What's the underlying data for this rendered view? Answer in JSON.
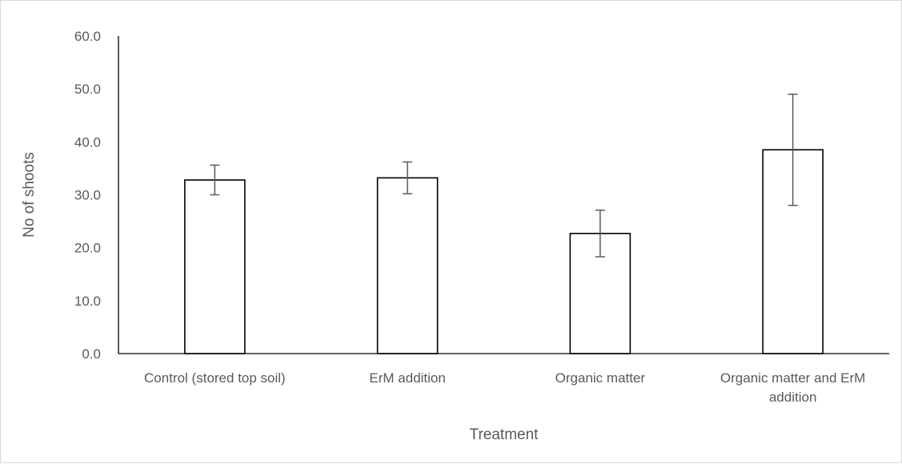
{
  "chart_data": {
    "type": "bar",
    "title": "",
    "xlabel": "Treatment",
    "ylabel": "No of shoots",
    "ylim": [
      0,
      60
    ],
    "yticks": [
      "0.0",
      "10.0",
      "20.0",
      "30.0",
      "40.0",
      "50.0",
      "60.0"
    ],
    "categories": [
      [
        "Control (stored top soil)"
      ],
      [
        "ErM addition"
      ],
      [
        "Organic matter"
      ],
      [
        "Organic matter and ErM",
        "addition"
      ]
    ],
    "values": [
      32.8,
      33.2,
      22.7,
      38.5
    ],
    "error_bars": [
      {
        "low": 30.0,
        "high": 35.6
      },
      {
        "low": 30.2,
        "high": 36.2
      },
      {
        "low": 18.3,
        "high": 27.1
      },
      {
        "low": 28.0,
        "high": 49.0
      }
    ],
    "grid": false,
    "legend": "none",
    "colors": {
      "bar_fill": "#ffffff",
      "bar_stroke": "#000000",
      "axis": "#000000",
      "error_bar": "#595959"
    }
  }
}
